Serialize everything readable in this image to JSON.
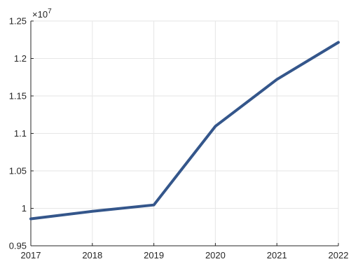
{
  "chart_data": {
    "type": "line",
    "title": "",
    "xlabel": "",
    "ylabel": "",
    "x": [
      2017,
      2018,
      2019,
      2020,
      2021,
      2022
    ],
    "series": [
      {
        "values": [
          9860000,
          9960000,
          10045000,
          11095000,
          11720000,
          12215000
        ],
        "color": "#34568b"
      }
    ],
    "xlim": [
      2017,
      2022
    ],
    "ylim": [
      9500000,
      12500000
    ],
    "xticks": [
      2017,
      2018,
      2019,
      2020,
      2021,
      2022
    ],
    "yticks": [
      9500000,
      10000000,
      10500000,
      11000000,
      11500000,
      12000000,
      12500000
    ],
    "ytick_labels": [
      "0.95",
      "1",
      "1.05",
      "1.1",
      "1.15",
      "1.2",
      "1.25"
    ],
    "y_exponent_label": "×10",
    "y_exponent_power": "7",
    "grid": true,
    "legend": "none"
  }
}
